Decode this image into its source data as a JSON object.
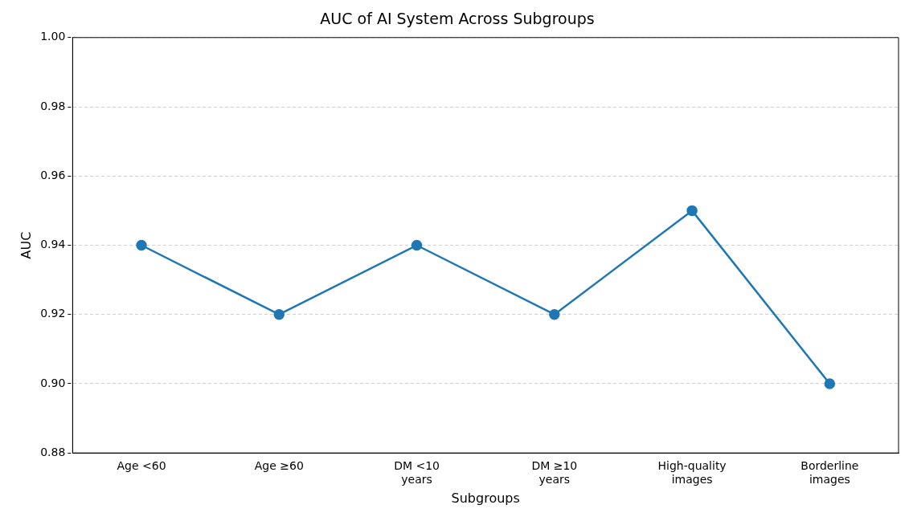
{
  "chart_data": {
    "type": "line",
    "title": "AUC of AI System Across Subgroups",
    "xlabel": "Subgroups",
    "ylabel": "AUC",
    "categories": [
      "Age <60",
      "Age ≥60",
      "DM <10\nyears",
      "DM ≥10\nyears",
      "High-quality\nimages",
      "Borderline\nimages"
    ],
    "series": [
      {
        "color": "#1f77b4",
        "values": [
          0.94,
          0.92,
          0.94,
          0.92,
          0.95,
          0.9
        ]
      }
    ],
    "ylim": [
      0.88,
      1.0
    ],
    "yticks": [
      0.88,
      {
        "value": 0.9,
        "label": "0.90"
      },
      0.92,
      0.94,
      0.96,
      0.98,
      {
        "value": 1,
        "label": "1.00"
      }
    ],
    "grid": "y",
    "legend": false,
    "marker": "circle",
    "line_style": "solid"
  }
}
